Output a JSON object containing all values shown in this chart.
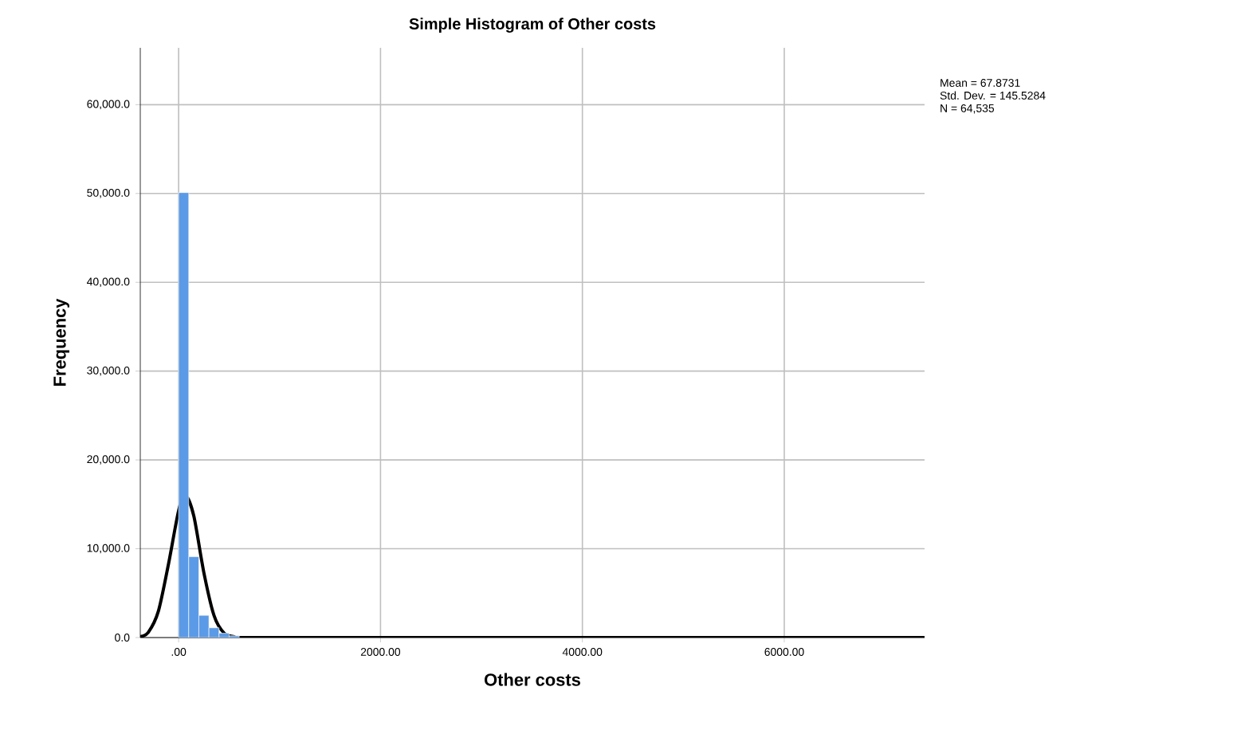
{
  "chart_data": {
    "type": "histogram",
    "title": "Simple Histogram of Other costs",
    "xlabel": "Other costs",
    "ylabel": "Frequency",
    "annotations": [
      "Mean = 67.8731",
      "Std. Dev. = 145.5284",
      "N = 64,535"
    ],
    "xlim": [
      -380,
      7390
    ],
    "ylim": [
      0,
      66400
    ],
    "xticks": [
      {
        "value": 0,
        "label": ".00"
      },
      {
        "value": 2000,
        "label": "2000.00"
      },
      {
        "value": 4000,
        "label": "4000.00"
      },
      {
        "value": 6000,
        "label": "6000.00"
      }
    ],
    "yticks": [
      {
        "value": 0,
        "label": "0.0"
      },
      {
        "value": 10000,
        "label": "10,000.0"
      },
      {
        "value": 20000,
        "label": "20,000.0"
      },
      {
        "value": 30000,
        "label": "30,000.0"
      },
      {
        "value": 40000,
        "label": "40,000.0"
      },
      {
        "value": 50000,
        "label": "50,000.0"
      },
      {
        "value": 60000,
        "label": "60,000.0"
      }
    ],
    "grid": true,
    "series": [
      {
        "color": "#5b9ae6",
        "bins": [
          0,
          100,
          200,
          300,
          400,
          500,
          600
        ],
        "values": [
          50100,
          9100,
          2500,
          1100,
          500,
          200
        ]
      },
      {
        "type": "line",
        "color": "#000000",
        "x": [
          -380,
          -300,
          -200,
          -100,
          0,
          67,
          150,
          250,
          350,
          450,
          550,
          700,
          7390
        ],
        "values": [
          100,
          600,
          3000,
          8300,
          14300,
          16000,
          13700,
          7300,
          2500,
          500,
          100,
          0,
          0
        ]
      }
    ]
  }
}
